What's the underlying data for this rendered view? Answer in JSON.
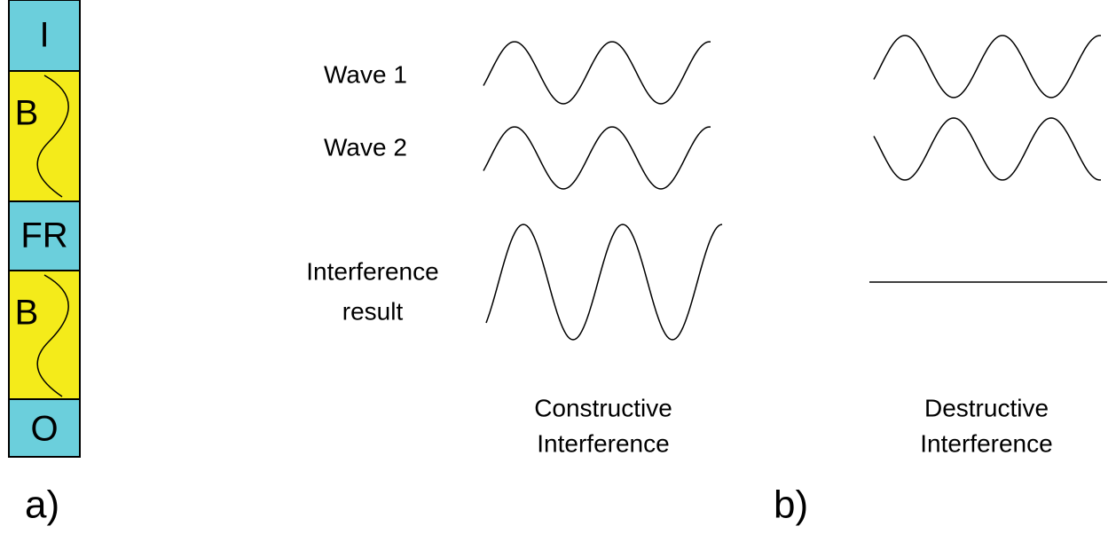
{
  "stack": {
    "layers": [
      "I",
      "B",
      "FR",
      "B",
      "O"
    ]
  },
  "panels": {
    "a": "a)",
    "b": "b)"
  },
  "rows": {
    "wave1": "Wave 1",
    "wave2": "Wave 2",
    "result": [
      "Interference",
      "result"
    ]
  },
  "columns": {
    "constructive": [
      "Constructive",
      "Interference"
    ],
    "destructive": [
      "Destructive",
      "Interference"
    ]
  }
}
